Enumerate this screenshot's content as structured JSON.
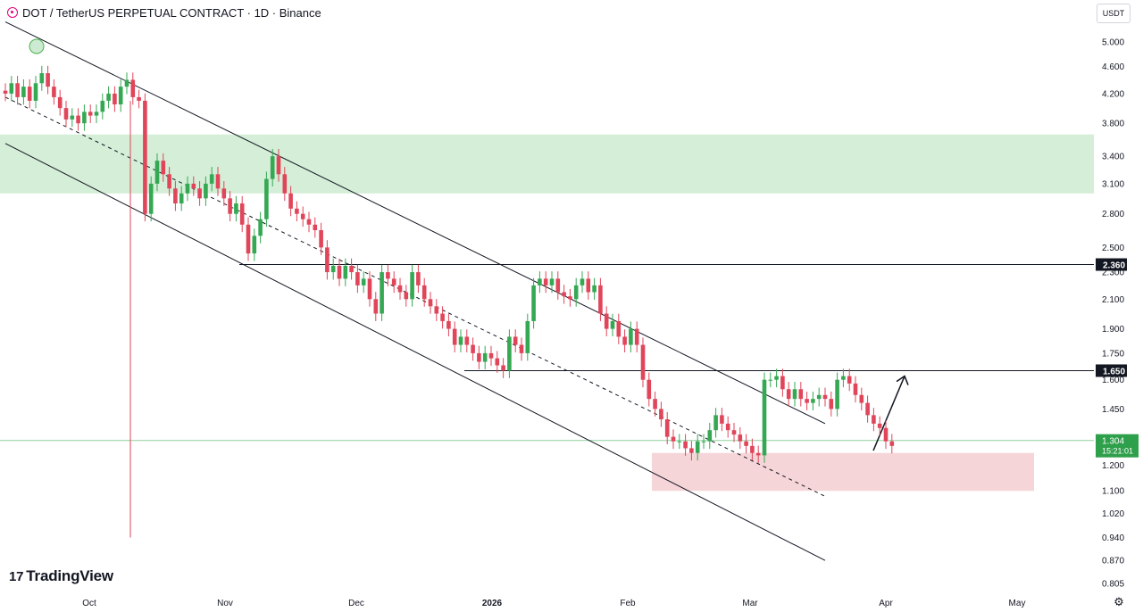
{
  "header": {
    "title": "DOT / TetherUS PERPETUAL CONTRACT · 1D · Binance"
  },
  "currency_button": "USDT",
  "brand": "TradingView",
  "icons": {
    "symbol": "polkadot-logo-icon",
    "brand": "tradingview-logo-icon",
    "settings": "settings-gear-icon"
  },
  "colors": {
    "up": "#26a69a",
    "up_body": "#35a853",
    "down": "#e0455a",
    "supply_zone": "#d4eed7",
    "demand_zone": "#f6d5d8",
    "price_tag": "#2e9f4a"
  },
  "chart_data": {
    "type": "candlestick",
    "scale": "log",
    "y_ticks": [
      "5.000",
      "4.600",
      "4.200",
      "3.800",
      "3.400",
      "3.100",
      "2.800",
      "2.500",
      "2.300",
      "2.100",
      "1.900",
      "1.750",
      "1.600",
      "1.450",
      "1.300",
      "1.200",
      "1.100",
      "1.020",
      "0.940",
      "0.870",
      "0.805"
    ],
    "x_ticks": [
      "Oct",
      "Nov",
      "Dec",
      "2026",
      "Feb",
      "Mar",
      "Apr",
      "May"
    ],
    "levels": [
      {
        "label": "2.360",
        "value": 2.36
      },
      {
        "label": "1.650",
        "value": 1.65
      }
    ],
    "last_price": {
      "label": "1.304",
      "countdown": "15:21:01",
      "value": 1.304
    },
    "zones": [
      {
        "name": "supply",
        "from": 3.0,
        "to": 3.66
      },
      {
        "name": "demand",
        "from": 1.1,
        "to": 1.25
      }
    ],
    "wick_low": 0.94,
    "channel": {
      "upper": [
        [
          0,
          5.35
        ],
        [
          135,
          1.38
        ]
      ],
      "middle": [
        [
          0,
          4.15
        ],
        [
          135,
          1.08
        ]
      ],
      "lower": [
        [
          0,
          3.55
        ],
        [
          135,
          0.87
        ]
      ]
    },
    "projection_arrow": {
      "from": [
        114,
        1.26
      ],
      "to": [
        119,
        1.62
      ]
    },
    "closes": [
      4.2,
      4.35,
      4.15,
      4.3,
      4.1,
      4.35,
      4.5,
      4.3,
      4.15,
      4.0,
      3.85,
      3.9,
      3.8,
      3.95,
      3.9,
      3.95,
      4.1,
      4.2,
      4.05,
      4.3,
      4.4,
      4.15,
      4.1,
      2.8,
      3.1,
      3.35,
      3.2,
      3.05,
      2.9,
      3.0,
      3.1,
      3.05,
      2.95,
      3.1,
      3.2,
      3.05,
      2.95,
      2.8,
      2.9,
      2.7,
      2.45,
      2.6,
      2.75,
      3.15,
      3.4,
      3.2,
      3.0,
      2.85,
      2.8,
      2.75,
      2.7,
      2.65,
      2.5,
      2.3,
      2.35,
      2.25,
      2.35,
      2.3,
      2.2,
      2.25,
      2.1,
      2.0,
      2.3,
      2.25,
      2.2,
      2.15,
      2.1,
      2.3,
      2.2,
      2.1,
      2.05,
      2.0,
      1.95,
      1.9,
      1.8,
      1.85,
      1.8,
      1.75,
      1.7,
      1.75,
      1.72,
      1.68,
      1.65,
      1.85,
      1.8,
      1.75,
      1.95,
      2.2,
      2.25,
      2.2,
      2.25,
      2.15,
      2.12,
      2.1,
      2.2,
      2.25,
      2.15,
      2.2,
      2.0,
      1.9,
      1.95,
      1.85,
      1.8,
      1.9,
      1.8,
      1.6,
      1.5,
      1.45,
      1.4,
      1.32,
      1.3,
      1.3,
      1.27,
      1.25,
      1.3,
      1.3,
      1.35,
      1.42,
      1.38,
      1.35,
      1.33,
      1.3,
      1.28,
      1.25,
      1.24,
      1.6,
      1.6,
      1.62,
      1.55,
      1.5,
      1.55,
      1.5,
      1.48,
      1.5,
      1.52,
      1.5,
      1.45,
      1.6,
      1.62,
      1.58,
      1.52,
      1.48,
      1.42,
      1.38,
      1.36,
      1.3,
      1.28
    ]
  }
}
